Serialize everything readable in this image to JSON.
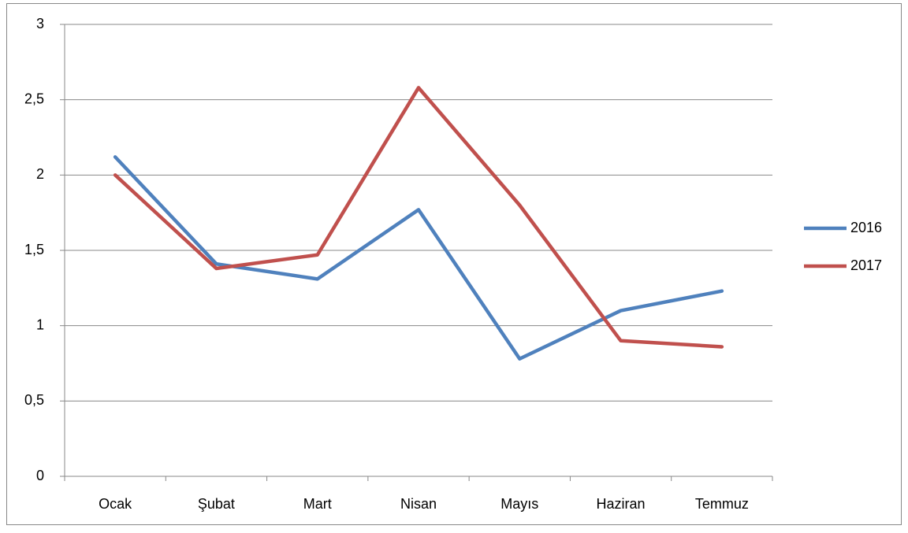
{
  "chart_data": {
    "type": "line",
    "categories": [
      "Ocak",
      "Şubat",
      "Mart",
      "Nisan",
      "Mayıs",
      "Haziran",
      "Temmuz"
    ],
    "series": [
      {
        "name": "2016",
        "color": "#4f81bd",
        "values": [
          2.12,
          1.41,
          1.31,
          1.77,
          0.78,
          1.1,
          1.23
        ]
      },
      {
        "name": "2017",
        "color": "#c0504d",
        "values": [
          2.0,
          1.38,
          1.47,
          2.58,
          1.8,
          0.9,
          0.86
        ]
      }
    ],
    "ylim": [
      0,
      3
    ],
    "yticks": [
      0,
      {
        "value": 0.5,
        "label": "0,5"
      },
      1,
      {
        "value": 1.5,
        "label": "1,5"
      },
      2,
      {
        "value": 2.5,
        "label": "2,5"
      },
      3
    ],
    "grid": true,
    "legend": "right"
  }
}
